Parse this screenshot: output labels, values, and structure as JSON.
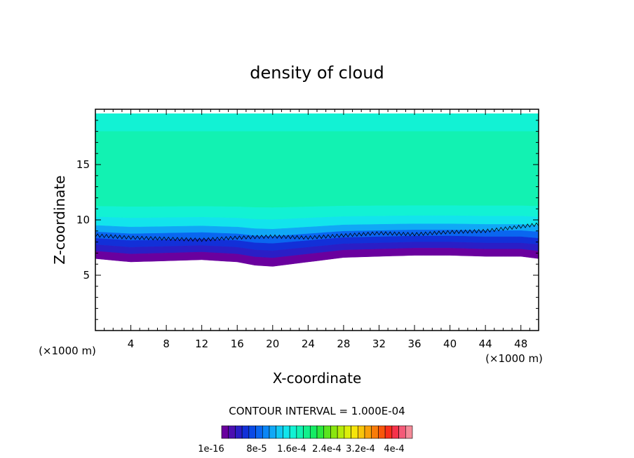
{
  "chart_data": {
    "type": "heatmap",
    "title": "density of cloud",
    "xlabel": "X-coordinate",
    "ylabel": "Z-coordinate",
    "x_unit": "(×1000 m)",
    "z_unit": "(×1000 m)",
    "xlim": [
      0,
      50
    ],
    "ylim": [
      0,
      20
    ],
    "x_ticks": [
      4,
      8,
      12,
      16,
      20,
      24,
      28,
      32,
      36,
      40,
      44,
      48
    ],
    "y_ticks": [
      5,
      10,
      15
    ],
    "contour_interval_text": "CONTOUR INTERVAL = 1.000E-04",
    "colorbar": {
      "labels": [
        "1e-16",
        "8e-5",
        "1.6e-4",
        "2.4e-4",
        "3.2e-4",
        "4e-4"
      ],
      "colors": [
        "#6a009e",
        "#4b0fb2",
        "#2a1ec6",
        "#1230d8",
        "#0a4ae6",
        "#0a66f0",
        "#0a86f6",
        "#10a8f6",
        "#12c8f2",
        "#12e4ec",
        "#12f2d4",
        "#12f2b2",
        "#12f08c",
        "#14ec64",
        "#2ce83c",
        "#5ae41e",
        "#8ae60e",
        "#b6ea0a",
        "#dcee0a",
        "#f6e40a",
        "#f8c40a",
        "#f8a00a",
        "#f87c0a",
        "#f8560a",
        "#f82e1a",
        "#f6324a",
        "#f45a78",
        "#f48a98"
      ]
    },
    "bands": [
      {
        "z_bottom": 18.0,
        "z_top": 19.6,
        "color": "#12f2d4"
      },
      {
        "z_bottom": 11.2,
        "z_top": 18.0,
        "color": "#12f2b2"
      },
      {
        "z_bottom": 10.2,
        "z_top": 11.2,
        "color": "#12f2d4"
      },
      {
        "z_bottom": 9.4,
        "z_top": 10.2,
        "color": "#12e4ec"
      },
      {
        "z_bottom": 8.8,
        "z_top": 9.4,
        "color": "#10a8f6"
      },
      {
        "z_bottom": 8.2,
        "z_top": 8.8,
        "color": "#0a66f0"
      },
      {
        "z_bottom": 7.6,
        "z_top": 8.2,
        "color": "#1230d8"
      },
      {
        "z_bottom": 7.0,
        "z_top": 7.6,
        "color": "#2a1ec6"
      },
      {
        "z_bottom": 6.3,
        "z_top": 7.0,
        "color": "#6a009e"
      }
    ],
    "cloud_base_km": [
      [
        0,
        6.5
      ],
      [
        4,
        6.2
      ],
      [
        8,
        6.3
      ],
      [
        12,
        6.4
      ],
      [
        16,
        6.2
      ],
      [
        18,
        5.9
      ],
      [
        20,
        5.8
      ],
      [
        22,
        6.0
      ],
      [
        24,
        6.2
      ],
      [
        28,
        6.6
      ],
      [
        32,
        6.7
      ],
      [
        36,
        6.8
      ],
      [
        40,
        6.8
      ],
      [
        44,
        6.7
      ],
      [
        48,
        6.7
      ],
      [
        50,
        6.5
      ]
    ],
    "contour_line_km": [
      [
        0,
        8.6
      ],
      [
        4,
        8.4
      ],
      [
        8,
        8.3
      ],
      [
        12,
        8.2
      ],
      [
        16,
        8.4
      ],
      [
        20,
        8.5
      ],
      [
        24,
        8.4
      ],
      [
        28,
        8.6
      ],
      [
        32,
        8.8
      ],
      [
        36,
        8.7
      ],
      [
        40,
        8.9
      ],
      [
        44,
        9.0
      ],
      [
        48,
        9.4
      ],
      [
        50,
        9.6
      ]
    ]
  }
}
